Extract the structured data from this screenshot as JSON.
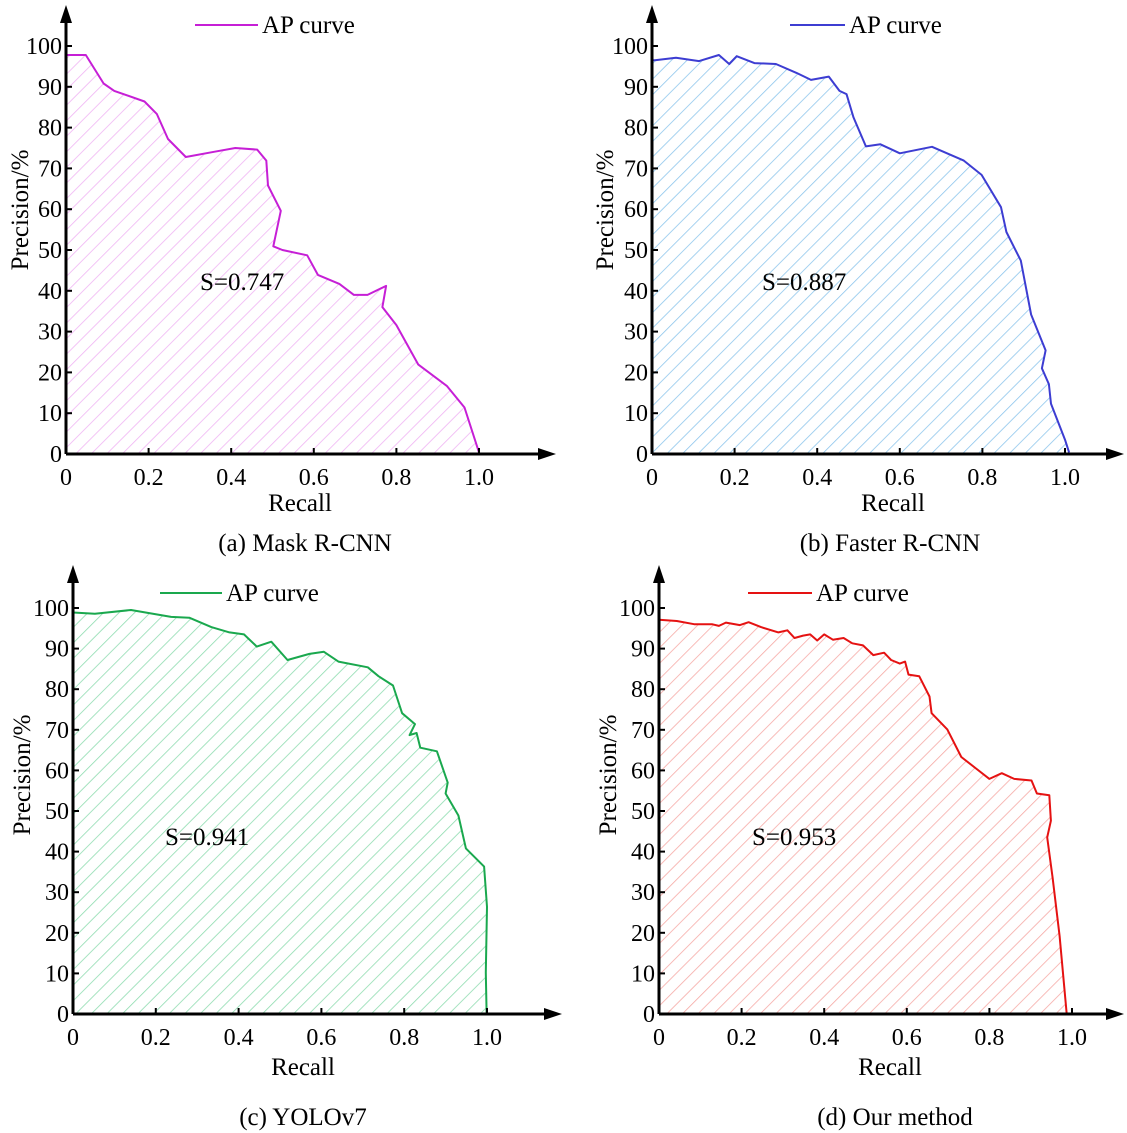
{
  "chart_data": [
    {
      "type": "area",
      "panel_title": "(a) Mask R-CNN",
      "xlabel": "Recall",
      "ylabel": "Precision/%",
      "legend": "AP curve",
      "legend_position": "top-center",
      "annotation": "S=0.747",
      "xlim": [
        0,
        1.0
      ],
      "ylim": [
        0,
        100
      ],
      "xticks": [
        "0",
        "0.2",
        "0.4",
        "0.6",
        "0.8",
        "1.0"
      ],
      "yticks": [
        "0",
        "10",
        "20",
        "30",
        "40",
        "50",
        "60",
        "70",
        "80",
        "90",
        "100"
      ],
      "color": "#c61fd6",
      "hatch_color": "#f0b4f4",
      "grid": false,
      "points": [
        [
          0,
          97.8
        ],
        [
          0.048,
          97.8
        ],
        [
          0.091,
          90.8
        ],
        [
          0.117,
          89
        ],
        [
          0.19,
          86.4
        ],
        [
          0.22,
          83.3
        ],
        [
          0.247,
          77.2
        ],
        [
          0.29,
          72.8
        ],
        [
          0.36,
          74.1
        ],
        [
          0.41,
          75
        ],
        [
          0.463,
          74.6
        ],
        [
          0.485,
          71.9
        ],
        [
          0.489,
          65.8
        ],
        [
          0.52,
          59.6
        ],
        [
          0.502,
          50.9
        ],
        [
          0.524,
          50
        ],
        [
          0.584,
          48.7
        ],
        [
          0.61,
          43.9
        ],
        [
          0.662,
          41.7
        ],
        [
          0.697,
          39
        ],
        [
          0.73,
          39
        ],
        [
          0.775,
          41.2
        ],
        [
          0.766,
          36
        ],
        [
          0.8,
          31.6
        ],
        [
          0.853,
          21.9
        ],
        [
          0.922,
          16.7
        ],
        [
          0.965,
          11.4
        ],
        [
          1.0,
          0.4
        ]
      ]
    },
    {
      "type": "area",
      "panel_title": "(b) Faster R-CNN",
      "xlabel": "Recall",
      "ylabel": "Precision/%",
      "legend": "AP curve",
      "legend_position": "top-center",
      "annotation": "S=0.887",
      "xlim": [
        0,
        1.0
      ],
      "ylim": [
        0,
        100
      ],
      "xticks": [
        "0",
        "0.2",
        "0.4",
        "0.6",
        "0.8",
        "1.0"
      ],
      "yticks": [
        "0",
        "10",
        "20",
        "30",
        "40",
        "50",
        "60",
        "70",
        "80",
        "90",
        "100"
      ],
      "color": "#3d3dd2",
      "hatch_color": "#8ec6ec",
      "grid": false,
      "points": [
        [
          0,
          96.5
        ],
        [
          0.007,
          96.5
        ],
        [
          0.058,
          97.1
        ],
        [
          0.114,
          96.3
        ],
        [
          0.162,
          97.8
        ],
        [
          0.187,
          95.6
        ],
        [
          0.205,
          97.5
        ],
        [
          0.248,
          95.8
        ],
        [
          0.3,
          95.6
        ],
        [
          0.35,
          93.4
        ],
        [
          0.385,
          91.7
        ],
        [
          0.428,
          92.5
        ],
        [
          0.454,
          89
        ],
        [
          0.471,
          88.2
        ],
        [
          0.488,
          82.5
        ],
        [
          0.518,
          75.4
        ],
        [
          0.553,
          75.9
        ],
        [
          0.6,
          73.7
        ],
        [
          0.678,
          75.3
        ],
        [
          0.755,
          71.9
        ],
        [
          0.798,
          68.4
        ],
        [
          0.845,
          60.5
        ],
        [
          0.858,
          54.4
        ],
        [
          0.893,
          47.4
        ],
        [
          0.918,
          34.2
        ],
        [
          0.953,
          25.4
        ],
        [
          0.944,
          21
        ],
        [
          0.961,
          17.1
        ],
        [
          0.966,
          12.3
        ],
        [
          1.0,
          3.5
        ],
        [
          1.01,
          0.4
        ]
      ]
    },
    {
      "type": "area",
      "panel_title": "(c) YOLOv7",
      "xlabel": "Recall",
      "ylabel": "Precision/%",
      "legend": "AP curve",
      "legend_position": "top-center",
      "annotation": "S=0.941",
      "xlim": [
        0,
        1.0
      ],
      "ylim": [
        0,
        100
      ],
      "xticks": [
        "0",
        "0.2",
        "0.4",
        "0.6",
        "0.8",
        "1.0"
      ],
      "yticks": [
        "0",
        "10",
        "20",
        "30",
        "40",
        "50",
        "60",
        "70",
        "80",
        "90",
        "100"
      ],
      "color": "#1aa84e",
      "hatch_color": "#8fdcb0",
      "grid": false,
      "points": [
        [
          0,
          98.9
        ],
        [
          0.053,
          98.6
        ],
        [
          0.14,
          99.5
        ],
        [
          0.237,
          97.8
        ],
        [
          0.281,
          97.6
        ],
        [
          0.334,
          95.3
        ],
        [
          0.378,
          94
        ],
        [
          0.413,
          93.5
        ],
        [
          0.444,
          90.5
        ],
        [
          0.479,
          91.7
        ],
        [
          0.518,
          87.2
        ],
        [
          0.571,
          88.7
        ],
        [
          0.606,
          89.2
        ],
        [
          0.641,
          86.8
        ],
        [
          0.712,
          85.4
        ],
        [
          0.738,
          83.2
        ],
        [
          0.773,
          80.9
        ],
        [
          0.795,
          74.1
        ],
        [
          0.826,
          71.4
        ],
        [
          0.813,
          68.7
        ],
        [
          0.83,
          69.2
        ],
        [
          0.839,
          65.6
        ],
        [
          0.879,
          64.7
        ],
        [
          0.905,
          57
        ],
        [
          0.9,
          54.3
        ],
        [
          0.931,
          48.9
        ],
        [
          0.949,
          40.8
        ],
        [
          0.993,
          36.3
        ],
        [
          1.0,
          26.4
        ],
        [
          0.997,
          10.2
        ],
        [
          0.999,
          0.3
        ]
      ]
    },
    {
      "type": "area",
      "panel_title": "(d) Our method",
      "xlabel": "Recall",
      "ylabel": "Precision/%",
      "legend": "AP curve",
      "legend_position": "top-center",
      "annotation": "S=0.953",
      "xlim": [
        0,
        1.0
      ],
      "ylim": [
        0,
        100
      ],
      "xticks": [
        "0",
        "0.2",
        "0.4",
        "0.6",
        "0.8",
        "1.0"
      ],
      "yticks": [
        "0",
        "10",
        "20",
        "30",
        "40",
        "50",
        "60",
        "70",
        "80",
        "90",
        "100"
      ],
      "color": "#e51212",
      "hatch_color": "#f6aaa6",
      "grid": false,
      "points": [
        [
          0,
          97.1
        ],
        [
          0.043,
          96.8
        ],
        [
          0.085,
          96
        ],
        [
          0.128,
          96
        ],
        [
          0.145,
          95.6
        ],
        [
          0.162,
          96.4
        ],
        [
          0.196,
          95.8
        ],
        [
          0.217,
          96.5
        ],
        [
          0.247,
          95.3
        ],
        [
          0.289,
          94
        ],
        [
          0.311,
          94.5
        ],
        [
          0.328,
          92.6
        ],
        [
          0.349,
          93.2
        ],
        [
          0.366,
          93.5
        ],
        [
          0.383,
          92
        ],
        [
          0.4,
          93.5
        ],
        [
          0.421,
          92.2
        ],
        [
          0.447,
          92.6
        ],
        [
          0.468,
          91.3
        ],
        [
          0.494,
          90.8
        ],
        [
          0.519,
          88.4
        ],
        [
          0.545,
          89
        ],
        [
          0.562,
          87.2
        ],
        [
          0.583,
          86.3
        ],
        [
          0.596,
          86.8
        ],
        [
          0.604,
          83.6
        ],
        [
          0.63,
          83.2
        ],
        [
          0.655,
          78.2
        ],
        [
          0.66,
          74.1
        ],
        [
          0.698,
          70.1
        ],
        [
          0.732,
          63.3
        ],
        [
          0.766,
          60.6
        ],
        [
          0.8,
          57.9
        ],
        [
          0.83,
          59.3
        ],
        [
          0.86,
          57.9
        ],
        [
          0.902,
          57.5
        ],
        [
          0.915,
          54.3
        ],
        [
          0.945,
          53.9
        ],
        [
          0.949,
          47.6
        ],
        [
          0.94,
          43.5
        ],
        [
          0.953,
          33.6
        ],
        [
          0.97,
          19.2
        ],
        [
          0.987,
          0.3
        ]
      ]
    }
  ]
}
